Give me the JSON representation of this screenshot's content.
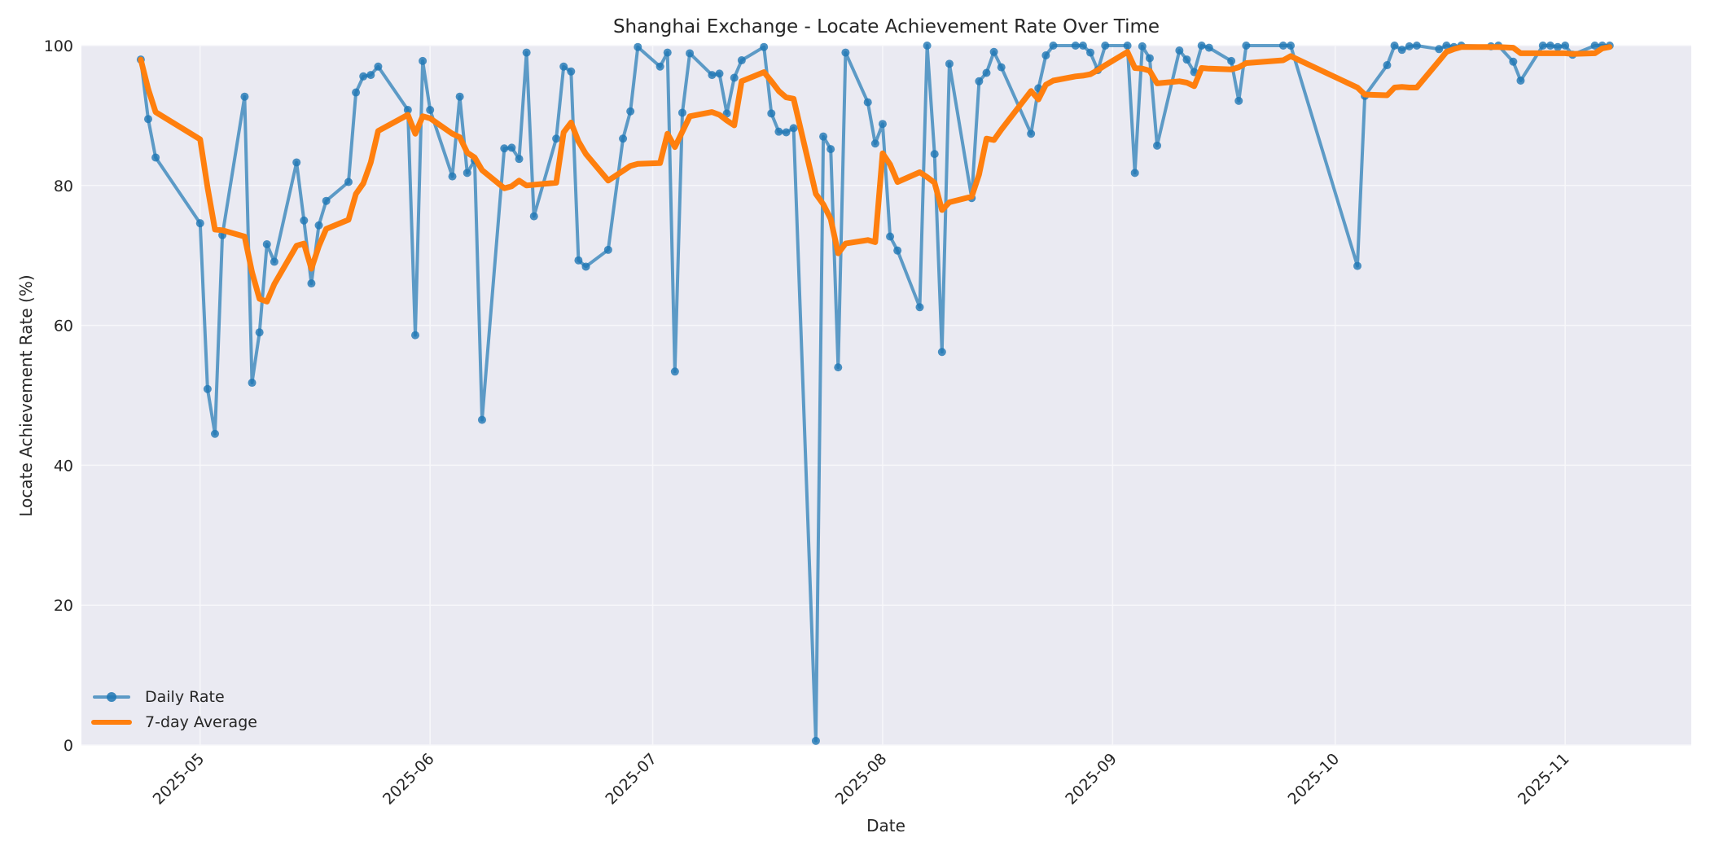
{
  "chart_data": {
    "type": "line",
    "title": "Shanghai Exchange - Locate Achievement Rate Over Time",
    "xlabel": "Date",
    "ylabel": "Locate Achievement Rate (%)",
    "ylim": [
      0,
      100
    ],
    "yticks": [
      0,
      20,
      40,
      60,
      80,
      100
    ],
    "xticks": [
      "2025-05",
      "2025-06",
      "2025-07",
      "2025-08",
      "2025-09",
      "2025-10",
      "2025-11"
    ],
    "xlim": [
      "2025-04-15",
      "2025-11-18"
    ],
    "grid": true,
    "legend_position": "lower left",
    "colors": {
      "daily": "#1f77b4",
      "avg": "#ff7f0e",
      "plot_bg": "#eaeaf2",
      "grid": "#f5f5f8"
    },
    "series": [
      {
        "name": "Daily Rate",
        "style": "line-with-markers",
        "x": [
          "2025-04-23",
          "2025-04-24",
          "2025-04-25",
          "2025-05-01",
          "2025-05-02",
          "2025-05-03",
          "2025-05-04",
          "2025-05-07",
          "2025-05-08",
          "2025-05-09",
          "2025-05-10",
          "2025-05-11",
          "2025-05-14",
          "2025-05-15",
          "2025-05-16",
          "2025-05-17",
          "2025-05-18",
          "2025-05-21",
          "2025-05-22",
          "2025-05-23",
          "2025-05-24",
          "2025-05-25",
          "2025-05-29",
          "2025-05-30",
          "2025-05-31",
          "2025-06-01",
          "2025-06-04",
          "2025-06-05",
          "2025-06-06",
          "2025-06-07",
          "2025-06-08",
          "2025-06-11",
          "2025-06-12",
          "2025-06-13",
          "2025-06-14",
          "2025-06-15",
          "2025-06-18",
          "2025-06-19",
          "2025-06-20",
          "2025-06-21",
          "2025-06-22",
          "2025-06-25",
          "2025-06-27",
          "2025-06-28",
          "2025-06-29",
          "2025-07-02",
          "2025-07-03",
          "2025-07-04",
          "2025-07-05",
          "2025-07-06",
          "2025-07-09",
          "2025-07-10",
          "2025-07-11",
          "2025-07-12",
          "2025-07-13",
          "2025-07-16",
          "2025-07-17",
          "2025-07-18",
          "2025-07-19",
          "2025-07-20",
          "2025-07-23",
          "2025-07-24",
          "2025-07-25",
          "2025-07-26",
          "2025-07-27",
          "2025-07-30",
          "2025-07-31",
          "2025-08-01",
          "2025-08-02",
          "2025-08-03",
          "2025-08-06",
          "2025-08-07",
          "2025-08-08",
          "2025-08-09",
          "2025-08-10",
          "2025-08-13",
          "2025-08-14",
          "2025-08-15",
          "2025-08-16",
          "2025-08-17",
          "2025-08-21",
          "2025-08-22",
          "2025-08-23",
          "2025-08-24",
          "2025-08-27",
          "2025-08-28",
          "2025-08-29",
          "2025-08-30",
          "2025-08-31",
          "2025-09-03",
          "2025-09-04",
          "2025-09-05",
          "2025-09-06",
          "2025-09-07",
          "2025-09-10",
          "2025-09-11",
          "2025-09-12",
          "2025-09-13",
          "2025-09-14",
          "2025-09-17",
          "2025-09-18",
          "2025-09-19",
          "2025-09-24",
          "2025-09-25",
          "2025-10-04",
          "2025-10-05",
          "2025-10-08",
          "2025-10-09",
          "2025-10-10",
          "2025-10-11",
          "2025-10-12",
          "2025-10-15",
          "2025-10-16",
          "2025-10-17",
          "2025-10-18",
          "2025-10-22",
          "2025-10-23",
          "2025-10-25",
          "2025-10-26",
          "2025-10-29",
          "2025-10-30",
          "2025-10-31",
          "2025-11-01",
          "2025-11-02",
          "2025-11-05",
          "2025-11-06",
          "2025-11-07"
        ],
        "values": [
          98,
          89.5,
          84,
          74.6,
          50.9,
          44.5,
          72.9,
          92.7,
          51.8,
          59,
          71.6,
          69.1,
          83.3,
          75,
          66,
          74.3,
          77.8,
          80.5,
          93.3,
          95.6,
          95.8,
          97,
          90.8,
          58.6,
          97.8,
          90.8,
          81.3,
          92.7,
          81.8,
          83.6,
          46.5,
          85.3,
          85.4,
          83.8,
          99,
          75.6,
          86.7,
          97,
          96.3,
          69.3,
          68.4,
          70.8,
          86.7,
          90.6,
          99.8,
          97,
          99,
          53.4,
          90.4,
          98.9,
          95.8,
          96,
          90.3,
          95.4,
          97.9,
          99.8,
          90.3,
          87.7,
          87.6,
          88.2,
          0.6,
          87,
          85.2,
          54,
          99,
          91.9,
          86,
          88.8,
          72.7,
          70.7,
          62.6,
          100,
          84.5,
          56.2,
          97.4,
          78.2,
          94.9,
          96.1,
          99.1,
          96.9,
          87.4,
          93.9,
          98.6,
          100,
          100,
          100,
          99,
          96.5,
          100,
          100,
          81.8,
          99.9,
          98.2,
          85.7,
          99.3,
          98,
          96.2,
          100,
          99.7,
          97.8,
          92.1,
          100,
          100,
          100,
          68.5,
          92.8,
          97.2,
          100,
          99.4,
          99.9,
          100,
          99.5,
          100,
          99.8,
          100,
          99.9,
          100,
          97.7,
          95,
          100,
          100,
          99.8,
          100,
          98.7,
          100,
          100,
          100
        ]
      },
      {
        "name": "7-day Average",
        "style": "thick-line",
        "x": [
          "2025-04-23",
          "2025-04-24",
          "2025-04-25",
          "2025-05-01",
          "2025-05-02",
          "2025-05-03",
          "2025-05-04",
          "2025-05-07",
          "2025-05-08",
          "2025-05-09",
          "2025-05-10",
          "2025-05-11",
          "2025-05-14",
          "2025-05-15",
          "2025-05-16",
          "2025-05-17",
          "2025-05-18",
          "2025-05-21",
          "2025-05-22",
          "2025-05-23",
          "2025-05-24",
          "2025-05-25",
          "2025-05-29",
          "2025-05-30",
          "2025-05-31",
          "2025-06-01",
          "2025-06-04",
          "2025-06-05",
          "2025-06-06",
          "2025-06-07",
          "2025-06-08",
          "2025-06-11",
          "2025-06-12",
          "2025-06-13",
          "2025-06-14",
          "2025-06-15",
          "2025-06-18",
          "2025-06-19",
          "2025-06-20",
          "2025-06-21",
          "2025-06-22",
          "2025-06-25",
          "2025-06-27",
          "2025-06-28",
          "2025-06-29",
          "2025-07-02",
          "2025-07-03",
          "2025-07-04",
          "2025-07-05",
          "2025-07-06",
          "2025-07-09",
          "2025-07-10",
          "2025-07-11",
          "2025-07-12",
          "2025-07-13",
          "2025-07-16",
          "2025-07-17",
          "2025-07-18",
          "2025-07-19",
          "2025-07-20",
          "2025-07-23",
          "2025-07-24",
          "2025-07-25",
          "2025-07-26",
          "2025-07-27",
          "2025-07-30",
          "2025-07-31",
          "2025-08-01",
          "2025-08-02",
          "2025-08-03",
          "2025-08-06",
          "2025-08-07",
          "2025-08-08",
          "2025-08-09",
          "2025-08-10",
          "2025-08-13",
          "2025-08-14",
          "2025-08-15",
          "2025-08-16",
          "2025-08-17",
          "2025-08-21",
          "2025-08-22",
          "2025-08-23",
          "2025-08-24",
          "2025-08-27",
          "2025-08-28",
          "2025-08-29",
          "2025-08-30",
          "2025-08-31",
          "2025-09-03",
          "2025-09-04",
          "2025-09-05",
          "2025-09-06",
          "2025-09-07",
          "2025-09-10",
          "2025-09-11",
          "2025-09-12",
          "2025-09-13",
          "2025-09-14",
          "2025-09-17",
          "2025-09-18",
          "2025-09-19",
          "2025-09-24",
          "2025-09-25",
          "2025-10-04",
          "2025-10-05",
          "2025-10-08",
          "2025-10-09",
          "2025-10-10",
          "2025-10-11",
          "2025-10-12",
          "2025-10-15",
          "2025-10-16",
          "2025-10-17",
          "2025-10-18",
          "2025-10-22",
          "2025-10-23",
          "2025-10-25",
          "2025-10-26",
          "2025-10-29",
          "2025-10-30",
          "2025-10-31",
          "2025-11-01",
          "2025-11-02",
          "2025-11-05",
          "2025-11-06",
          "2025-11-07"
        ],
        "values": [
          98,
          93.8,
          90.5,
          86.6,
          79.7,
          73.7,
          73.6,
          72.7,
          67.6,
          63.8,
          63.4,
          65.9,
          71.4,
          71.7,
          68.1,
          71.3,
          73.8,
          75.1,
          78.8,
          80.3,
          83.3,
          87.8,
          90.1,
          87.4,
          89.9,
          89.6,
          87.4,
          86.9,
          84.7,
          84,
          82.2,
          79.6,
          79.9,
          80.7,
          80,
          80.1,
          80.4,
          87.6,
          89,
          86.3,
          84.5,
          80.7,
          82.1,
          82.8,
          83.1,
          83.2,
          87.4,
          85.5,
          87.7,
          89.9,
          90.5,
          90.1,
          89.3,
          88.6,
          94.9,
          96.2,
          94.9,
          93.5,
          92.6,
          92.4,
          78.8,
          77.3,
          75.2,
          70.3,
          71.7,
          72.2,
          71.9,
          84.6,
          83,
          80.5,
          81.9,
          81.2,
          80.4,
          76.5,
          77.6,
          78.4,
          81.6,
          86.7,
          86.5,
          88,
          93.5,
          92.3,
          94.4,
          95,
          95.6,
          95.7,
          95.9,
          96.5,
          97.2,
          99.1,
          96.8,
          96.7,
          96.4,
          94.6,
          94.9,
          94.7,
          94.2,
          96.8,
          96.7,
          96.6,
          96.9,
          97.5,
          97.9,
          98.5,
          94,
          93,
          92.9,
          94,
          94.1,
          94,
          94,
          97.8,
          99.1,
          99.5,
          99.8,
          99.8,
          99.8,
          99.7,
          98.9,
          98.9,
          98.9,
          98.9,
          98.9,
          98.8,
          98.9,
          99.6,
          99.8
        ]
      }
    ]
  },
  "header": {
    "title": "Shanghai Exchange - Locate Achievement Rate Over Time"
  },
  "axes": {
    "xlabel": "Date",
    "ylabel": "Locate Achievement Rate (%)",
    "yticks": [
      "0",
      "20",
      "40",
      "60",
      "80",
      "100"
    ],
    "xticks": [
      "2025-05",
      "2025-06",
      "2025-07",
      "2025-08",
      "2025-09",
      "2025-10",
      "2025-11"
    ]
  },
  "legend": {
    "items": [
      {
        "label": "Daily Rate",
        "icon": "line-marker-icon"
      },
      {
        "label": "7-day Average",
        "icon": "thick-line-icon"
      }
    ]
  }
}
